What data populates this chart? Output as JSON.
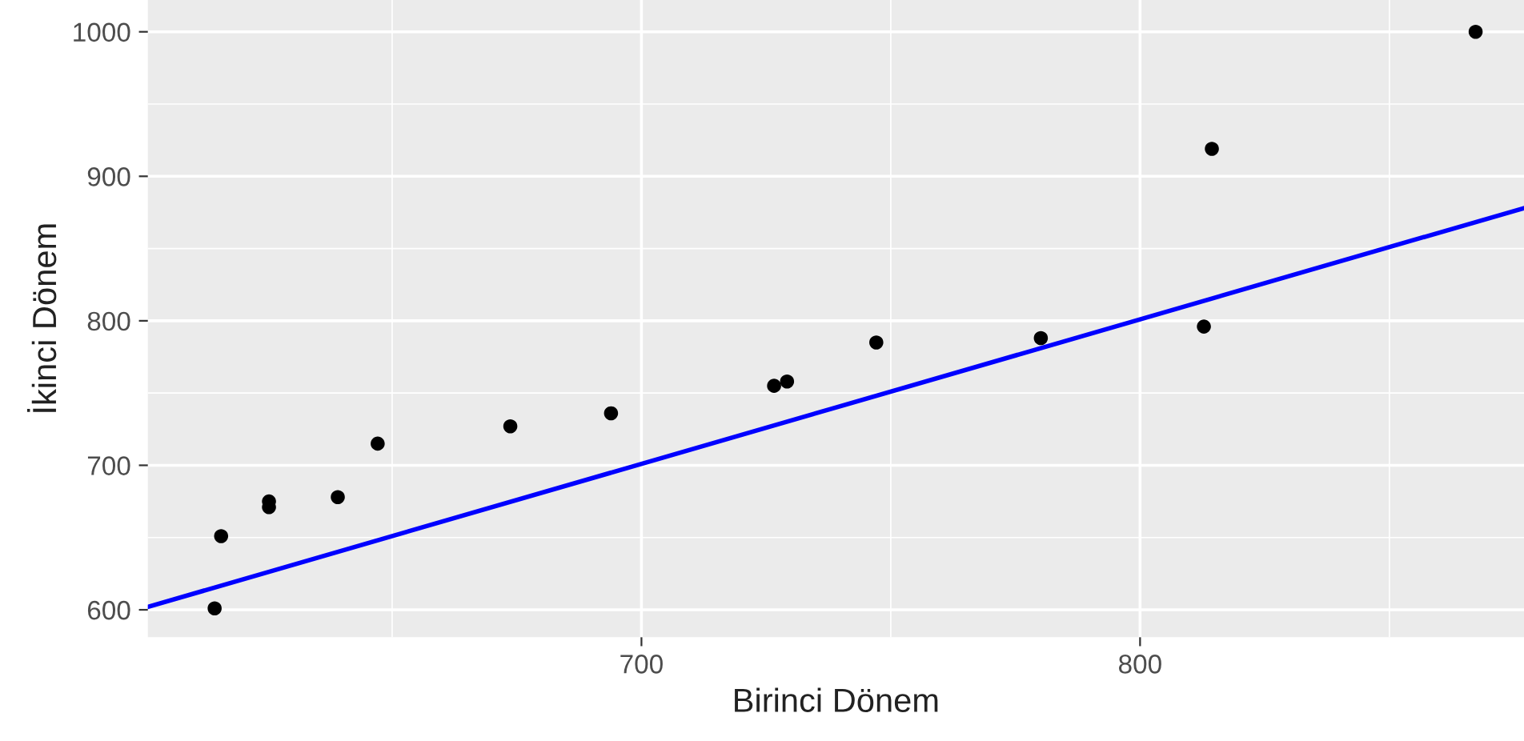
{
  "chart_data": {
    "type": "scatter",
    "xlabel": "Birinci Dönem",
    "ylabel": "İkinci Dönem",
    "xlim": [
      601,
      877
    ],
    "ylim": [
      581,
      1022
    ],
    "xticks": [
      700,
      800
    ],
    "yticks": [
      600,
      700,
      800,
      900,
      1000
    ],
    "grid": true,
    "marker": "circle",
    "series": [
      {
        "color": "#000000",
        "x": [
          614.4,
          615.7,
          625.3,
          625.3,
          639.1,
          647.1,
          673.7,
          693.9,
          726.6,
          729.2,
          747.1,
          780.1,
          812.8,
          814.4,
          867.3
        ],
        "values": [
          601,
          651,
          675,
          671,
          678,
          715,
          727,
          736,
          755,
          758,
          785,
          788,
          796,
          919,
          1000
        ]
      },
      {
        "type": "line",
        "color": "#0000ff",
        "marker": "none",
        "x": [
          601,
          877
        ],
        "values": [
          602,
          878
        ]
      }
    ]
  }
}
